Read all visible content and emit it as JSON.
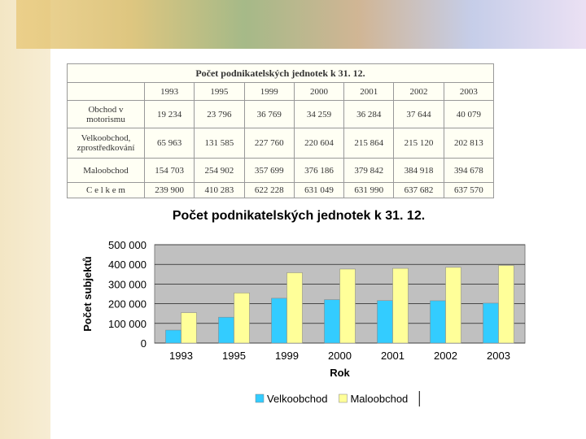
{
  "table": {
    "title": "Počet podnikatelských jednotek k 31. 12.",
    "columns": [
      "1993",
      "1995",
      "1999",
      "2000",
      "2001",
      "2002",
      "2003"
    ],
    "rows": [
      {
        "label": "Obchod v motorismu",
        "cells": [
          "19 234",
          "23 796",
          "36 769",
          "34 259",
          "36 284",
          "37 644",
          "40 079"
        ]
      },
      {
        "label": "Velkoobchod, zprostředkování",
        "cells": [
          "65 963",
          "131 585",
          "227 760",
          "220 604",
          "215 864",
          "215 120",
          "202 813"
        ]
      },
      {
        "label": "Maloobchod",
        "cells": [
          "154 703",
          "254 902",
          "357 699",
          "376 186",
          "379 842",
          "384 918",
          "394 678"
        ]
      },
      {
        "label": "C e l k e m",
        "cells": [
          "239 900",
          "410 283",
          "622 228",
          "631 049",
          "631 990",
          "637 682",
          "637 570"
        ]
      }
    ]
  },
  "chart_data": {
    "type": "bar",
    "title": "Počet podnikatelských jednotek k 31. 12.",
    "x_label": "Rok",
    "y_label": "Počet subjektů",
    "categories": [
      "1993",
      "1995",
      "1999",
      "2000",
      "2001",
      "2002",
      "2003"
    ],
    "series": [
      {
        "name": "Velkoobchod",
        "color": "#33ccff",
        "values": [
          65963,
          131585,
          227760,
          220604,
          215864,
          215120,
          202813
        ]
      },
      {
        "name": "Maloobchod",
        "color": "#ffff99",
        "values": [
          154703,
          254902,
          357699,
          376186,
          379842,
          384918,
          394678
        ]
      }
    ],
    "ylim": [
      0,
      500000
    ],
    "yticks": [
      0,
      {
        "value": 100000,
        "label": "100 000"
      },
      {
        "value": 200000,
        "label": "200 000"
      },
      {
        "value": 300000,
        "label": "300 000"
      },
      {
        "value": 400000,
        "label": "400 000"
      },
      {
        "value": 500000,
        "label": "500 000"
      }
    ],
    "grid": true,
    "plot_background": "#c0c0c0",
    "legend": "bottom"
  }
}
